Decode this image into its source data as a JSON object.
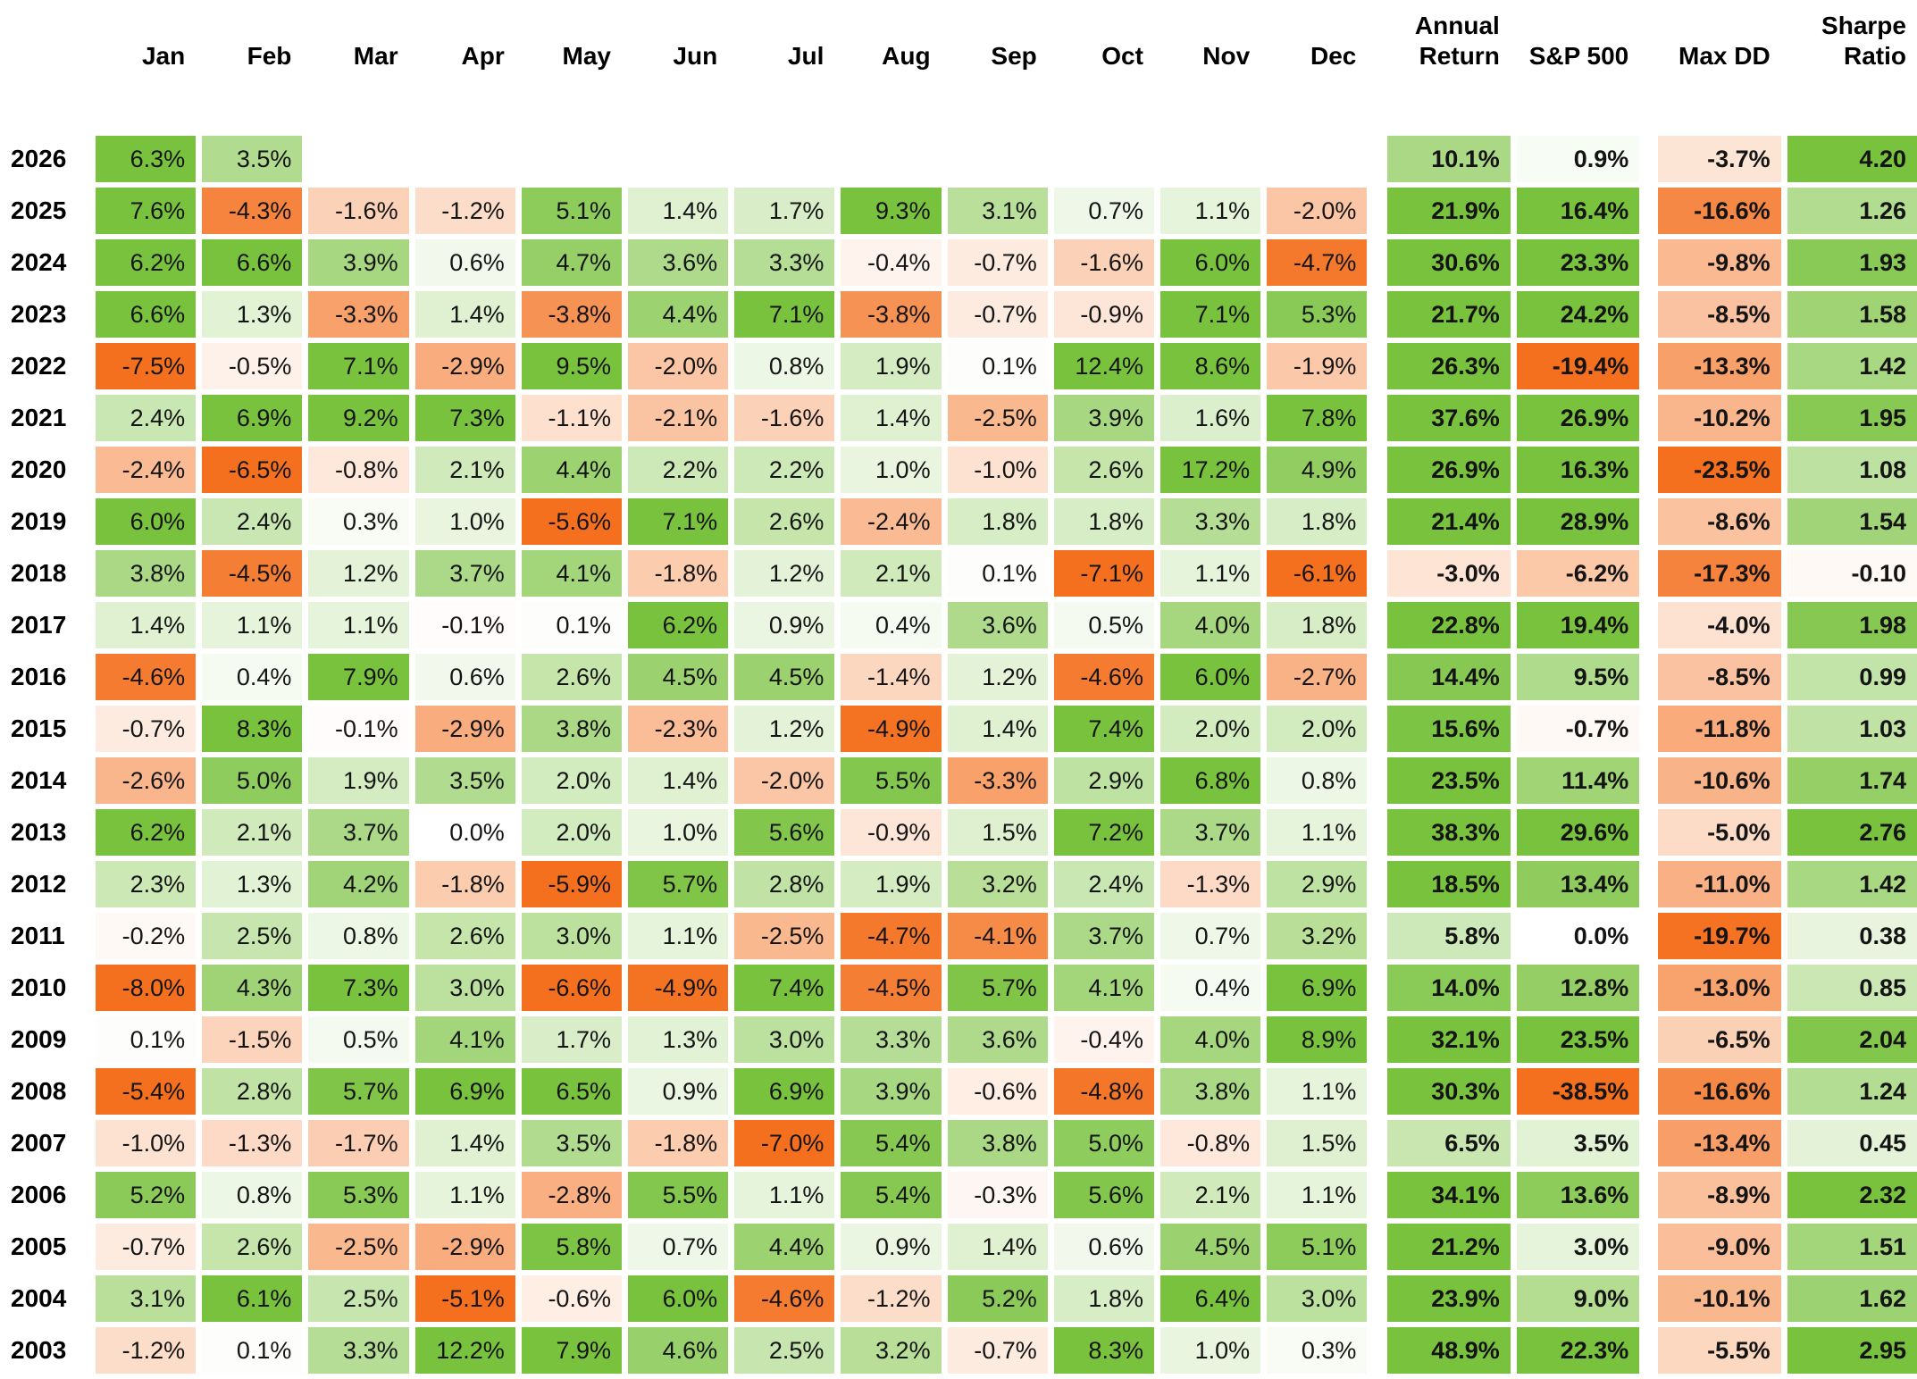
{
  "table": {
    "corner_label": "",
    "month_headers": [
      "Jan",
      "Feb",
      "Mar",
      "Apr",
      "May",
      "Jun",
      "Jul",
      "Aug",
      "Sep",
      "Oct",
      "Nov",
      "Dec"
    ],
    "summary_headers": {
      "annual": "Annual\nReturn",
      "sp500": "S&P 500",
      "max_dd": "Max DD",
      "sharpe": "Sharpe\nRatio"
    }
  },
  "colors": {
    "positive_green": "#79c23e",
    "negative_orange": "#f4701f",
    "neutral_white": "#ffffff",
    "text": "#141414"
  },
  "scales": {
    "month_positive_max_pct": 6,
    "month_negative_max_pct": 5,
    "annual_sp500_max_pct": 16,
    "max_dd_max_pct": 20,
    "sharpe_max": 2.2
  },
  "chart_data": {
    "type": "heatmap",
    "columns": [
      "Jan",
      "Feb",
      "Mar",
      "Apr",
      "May",
      "Jun",
      "Jul",
      "Aug",
      "Sep",
      "Oct",
      "Nov",
      "Dec",
      "Annual Return",
      "S&P 500",
      "Max DD",
      "Sharpe Ratio"
    ],
    "value_units": "percent (monthly, annual, S&P 500, Max DD); Sharpe Ratio is unitless",
    "rows": [
      {
        "year": 2026,
        "months": [
          6.3,
          3.5,
          null,
          null,
          null,
          null,
          null,
          null,
          null,
          null,
          null,
          null
        ],
        "annual_return": 10.1,
        "sp500": 0.9,
        "max_dd": -3.7,
        "sharpe": 4.2
      },
      {
        "year": 2025,
        "months": [
          7.6,
          -4.3,
          -1.6,
          -1.2,
          5.1,
          1.4,
          1.7,
          9.3,
          3.1,
          0.7,
          1.1,
          -2.0
        ],
        "annual_return": 21.9,
        "sp500": 16.4,
        "max_dd": -16.6,
        "sharpe": 1.26
      },
      {
        "year": 2024,
        "months": [
          6.2,
          6.6,
          3.9,
          0.6,
          4.7,
          3.6,
          3.3,
          -0.4,
          -0.7,
          -1.6,
          6.0,
          -4.7
        ],
        "annual_return": 30.6,
        "sp500": 23.3,
        "max_dd": -9.8,
        "sharpe": 1.93
      },
      {
        "year": 2023,
        "months": [
          6.6,
          1.3,
          -3.3,
          1.4,
          -3.8,
          4.4,
          7.1,
          -3.8,
          -0.7,
          -0.9,
          7.1,
          5.3
        ],
        "annual_return": 21.7,
        "sp500": 24.2,
        "max_dd": -8.5,
        "sharpe": 1.58
      },
      {
        "year": 2022,
        "months": [
          -7.5,
          -0.5,
          7.1,
          -2.9,
          9.5,
          -2.0,
          0.8,
          1.9,
          0.1,
          12.4,
          8.6,
          -1.9
        ],
        "annual_return": 26.3,
        "sp500": -19.4,
        "max_dd": -13.3,
        "sharpe": 1.42
      },
      {
        "year": 2021,
        "months": [
          2.4,
          6.9,
          9.2,
          7.3,
          -1.1,
          -2.1,
          -1.6,
          1.4,
          -2.5,
          3.9,
          1.6,
          7.8
        ],
        "annual_return": 37.6,
        "sp500": 26.9,
        "max_dd": -10.2,
        "sharpe": 1.95
      },
      {
        "year": 2020,
        "months": [
          -2.4,
          -6.5,
          -0.8,
          2.1,
          4.4,
          2.2,
          2.2,
          1.0,
          -1.0,
          2.6,
          17.2,
          4.9
        ],
        "annual_return": 26.9,
        "sp500": 16.3,
        "max_dd": -23.5,
        "sharpe": 1.08
      },
      {
        "year": 2019,
        "months": [
          6.0,
          2.4,
          0.3,
          1.0,
          -5.6,
          7.1,
          2.6,
          -2.4,
          1.8,
          1.8,
          3.3,
          1.8
        ],
        "annual_return": 21.4,
        "sp500": 28.9,
        "max_dd": -8.6,
        "sharpe": 1.54
      },
      {
        "year": 2018,
        "months": [
          3.8,
          -4.5,
          1.2,
          3.7,
          4.1,
          -1.8,
          1.2,
          2.1,
          0.1,
          -7.1,
          1.1,
          -6.1
        ],
        "annual_return": -3.0,
        "sp500": -6.2,
        "max_dd": -17.3,
        "sharpe": -0.1
      },
      {
        "year": 2017,
        "months": [
          1.4,
          1.1,
          1.1,
          -0.1,
          0.1,
          6.2,
          0.9,
          0.4,
          3.6,
          0.5,
          4.0,
          1.8
        ],
        "annual_return": 22.8,
        "sp500": 19.4,
        "max_dd": -4.0,
        "sharpe": 1.98
      },
      {
        "year": 2016,
        "months": [
          -4.6,
          0.4,
          7.9,
          0.6,
          2.6,
          4.5,
          4.5,
          -1.4,
          1.2,
          -4.6,
          6.0,
          -2.7
        ],
        "annual_return": 14.4,
        "sp500": 9.5,
        "max_dd": -8.5,
        "sharpe": 0.99
      },
      {
        "year": 2015,
        "months": [
          -0.7,
          8.3,
          -0.1,
          -2.9,
          3.8,
          -2.3,
          1.2,
          -4.9,
          1.4,
          7.4,
          2.0,
          2.0
        ],
        "annual_return": 15.6,
        "sp500": -0.7,
        "max_dd": -11.8,
        "sharpe": 1.03
      },
      {
        "year": 2014,
        "months": [
          -2.6,
          5.0,
          1.9,
          3.5,
          2.0,
          1.4,
          -2.0,
          5.5,
          -3.3,
          2.9,
          6.8,
          0.8
        ],
        "annual_return": 23.5,
        "sp500": 11.4,
        "max_dd": -10.6,
        "sharpe": 1.74
      },
      {
        "year": 2013,
        "months": [
          6.2,
          2.1,
          3.7,
          0.0,
          2.0,
          1.0,
          5.6,
          -0.9,
          1.5,
          7.2,
          3.7,
          1.1
        ],
        "annual_return": 38.3,
        "sp500": 29.6,
        "max_dd": -5.0,
        "sharpe": 2.76
      },
      {
        "year": 2012,
        "months": [
          2.3,
          1.3,
          4.2,
          -1.8,
          -5.9,
          5.7,
          2.8,
          1.9,
          3.2,
          2.4,
          -1.3,
          2.9
        ],
        "annual_return": 18.5,
        "sp500": 13.4,
        "max_dd": -11.0,
        "sharpe": 1.42
      },
      {
        "year": 2011,
        "months": [
          -0.2,
          2.5,
          0.8,
          2.6,
          3.0,
          1.1,
          -2.5,
          -4.7,
          -4.1,
          3.7,
          0.7,
          3.2
        ],
        "annual_return": 5.8,
        "sp500": 0.0,
        "max_dd": -19.7,
        "sharpe": 0.38
      },
      {
        "year": 2010,
        "months": [
          -8.0,
          4.3,
          7.3,
          3.0,
          -6.6,
          -4.9,
          7.4,
          -4.5,
          5.7,
          4.1,
          0.4,
          6.9
        ],
        "annual_return": 14.0,
        "sp500": 12.8,
        "max_dd": -13.0,
        "sharpe": 0.85
      },
      {
        "year": 2009,
        "months": [
          0.1,
          -1.5,
          0.5,
          4.1,
          1.7,
          1.3,
          3.0,
          3.3,
          3.6,
          -0.4,
          4.0,
          8.9
        ],
        "annual_return": 32.1,
        "sp500": 23.5,
        "max_dd": -6.5,
        "sharpe": 2.04
      },
      {
        "year": 2008,
        "months": [
          -5.4,
          2.8,
          5.7,
          6.9,
          6.5,
          0.9,
          6.9,
          3.9,
          -0.6,
          -4.8,
          3.8,
          1.1
        ],
        "annual_return": 30.3,
        "sp500": -38.5,
        "max_dd": -16.6,
        "sharpe": 1.24
      },
      {
        "year": 2007,
        "months": [
          -1.0,
          -1.3,
          -1.7,
          1.4,
          3.5,
          -1.8,
          -7.0,
          5.4,
          3.8,
          5.0,
          -0.8,
          1.5
        ],
        "annual_return": 6.5,
        "sp500": 3.5,
        "max_dd": -13.4,
        "sharpe": 0.45
      },
      {
        "year": 2006,
        "months": [
          5.2,
          0.8,
          5.3,
          1.1,
          -2.8,
          5.5,
          1.1,
          5.4,
          -0.3,
          5.6,
          2.1,
          1.1
        ],
        "annual_return": 34.1,
        "sp500": 13.6,
        "max_dd": -8.9,
        "sharpe": 2.32
      },
      {
        "year": 2005,
        "months": [
          -0.7,
          2.6,
          -2.5,
          -2.9,
          5.8,
          0.7,
          4.4,
          0.9,
          1.4,
          0.6,
          4.5,
          5.1
        ],
        "annual_return": 21.2,
        "sp500": 3.0,
        "max_dd": -9.0,
        "sharpe": 1.51
      },
      {
        "year": 2004,
        "months": [
          3.1,
          6.1,
          2.5,
          -5.1,
          -0.6,
          6.0,
          -4.6,
          -1.2,
          5.2,
          1.8,
          6.4,
          3.0
        ],
        "annual_return": 23.9,
        "sp500": 9.0,
        "max_dd": -10.1,
        "sharpe": 1.62
      },
      {
        "year": 2003,
        "months": [
          -1.2,
          0.1,
          3.3,
          12.2,
          7.9,
          4.6,
          2.5,
          3.2,
          -0.7,
          8.3,
          1.0,
          0.3
        ],
        "annual_return": 48.9,
        "sp500": 22.3,
        "max_dd": -5.5,
        "sharpe": 2.95
      }
    ]
  }
}
